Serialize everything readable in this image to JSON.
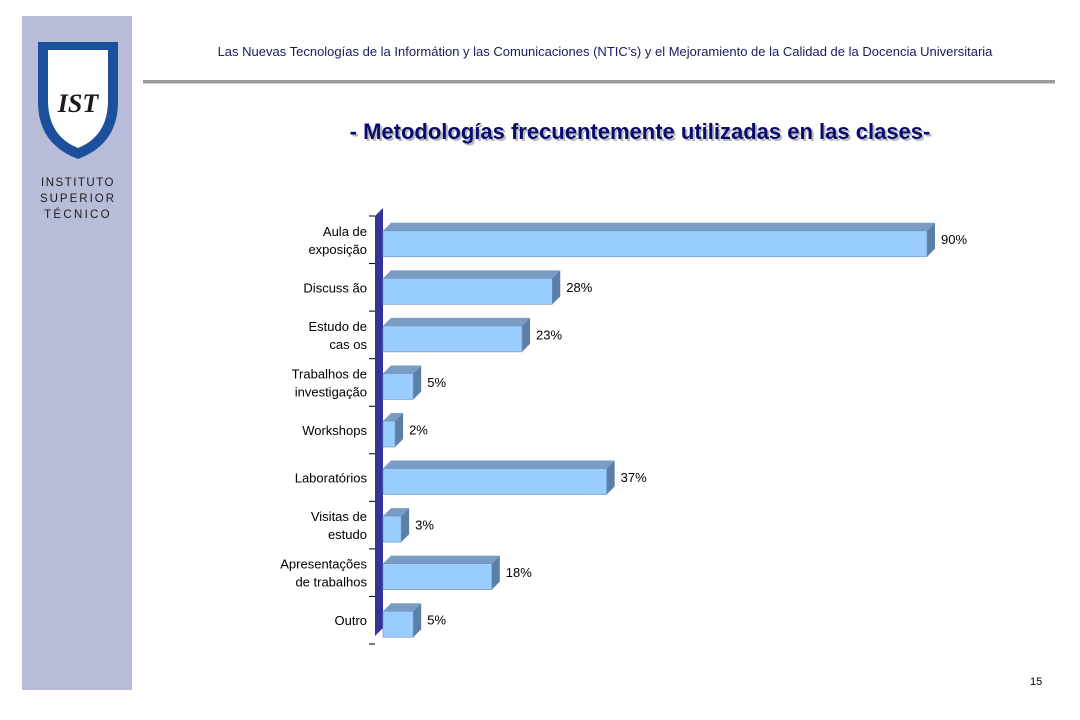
{
  "header": {
    "text": "Las Nuevas Tecnologías de la Informátion y las Comunicaciones (NTIC’s) y el Mejoramiento de la Calidad de la Docencia Universitaria"
  },
  "logo": {
    "lines": [
      "INSTITUTO",
      "SUPERIOR",
      "TÉCNICO"
    ],
    "mark": "IST"
  },
  "title": "- Metodologías frecuentemente utilizadas en las clases-",
  "page_number": "15",
  "colors": {
    "sidebar": "#b8bcd9",
    "bar_front": "#99ccff",
    "bar_side": "#5b7fa6",
    "bar_top": "#7a9cc4",
    "wall": "#33339a",
    "title": "#0a0a6e"
  },
  "chart_data": {
    "type": "bar",
    "orientation": "horizontal",
    "style": "3d",
    "categories": [
      [
        "Aula de",
        "exposição"
      ],
      [
        "Discuss ão"
      ],
      [
        "Estudo de",
        "cas os"
      ],
      [
        "Trabalhos de",
        "investigação"
      ],
      [
        "Workshops"
      ],
      [
        "Laboratórios"
      ],
      [
        "Visitas de",
        "estudo"
      ],
      [
        "Apresentações",
        "de trabalhos"
      ],
      [
        "Outro"
      ]
    ],
    "values": [
      90,
      28,
      23,
      5,
      2,
      37,
      3,
      18,
      5
    ],
    "value_labels": [
      "90%",
      "28%",
      "23%",
      "5%",
      "2%",
      "37%",
      "3%",
      "18%",
      "5%"
    ],
    "xlim": [
      0,
      90
    ],
    "grid": false,
    "legend": "none"
  }
}
